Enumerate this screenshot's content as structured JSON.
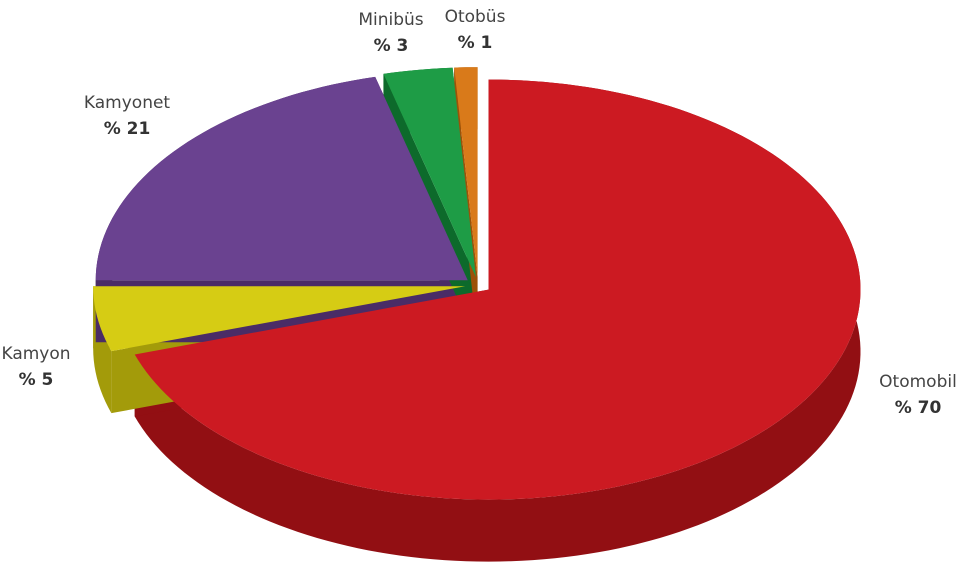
{
  "chart_data": {
    "type": "pie",
    "categories": [
      "Otomobil",
      "Kamyon",
      "Kamyonet",
      "Minibüs",
      "Otobüs"
    ],
    "values": [
      70,
      5,
      21,
      3,
      1
    ],
    "value_labels": [
      "% 70",
      "% 5",
      "% 21",
      "% 3",
      "% 1"
    ],
    "colors": [
      "#cc1a22",
      "#d6cc14",
      "#6a4290",
      "#1e9c46",
      "#d97a1a"
    ],
    "side_colors": [
      "#920f13",
      "#a39b0a",
      "#4a2c66",
      "#0d6a2b",
      "#9c5208"
    ]
  }
}
